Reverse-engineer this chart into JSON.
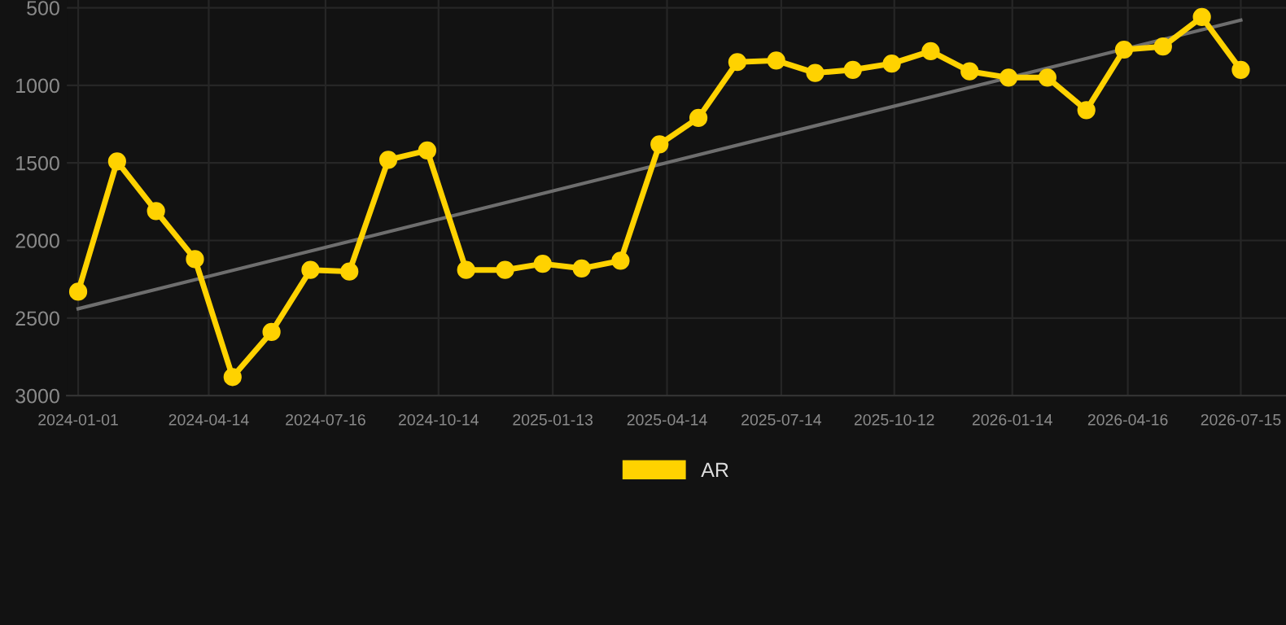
{
  "chart_data": {
    "type": "line",
    "legend": "bottom",
    "grid": true,
    "marker": "circle",
    "line_style": "solid",
    "x": [
      "2024-01-01",
      "2024-02-01",
      "2024-03-03",
      "2024-04-03",
      "2024-05-03",
      "2024-06-03",
      "2024-07-04",
      "2024-08-04",
      "2024-09-04",
      "2024-10-05",
      "2024-11-05",
      "2024-12-06",
      "2025-01-05",
      "2025-02-05",
      "2025-03-08",
      "2025-04-08",
      "2025-05-09",
      "2025-06-09",
      "2025-07-10",
      "2025-08-10",
      "2025-09-09",
      "2025-10-10",
      "2025-11-10",
      "2025-12-11",
      "2026-01-11",
      "2026-02-11",
      "2026-03-14",
      "2026-04-13",
      "2026-05-14",
      "2026-06-14",
      "2026-07-15"
    ],
    "series": [
      {
        "name": "AR",
        "color": "#ffd200",
        "values": [
          2330,
          1490,
          1810,
          2120,
          2880,
          2590,
          2190,
          2200,
          1480,
          1420,
          2190,
          2190,
          2150,
          2180,
          2130,
          1380,
          1210,
          850,
          840,
          920,
          900,
          860,
          780,
          910,
          950,
          950,
          1160,
          770,
          750,
          560,
          900
        ]
      },
      {
        "type": "line",
        "marker": "none",
        "color": "#6e6e6e",
        "x": [
          "2024-01-01",
          "2026-07-15"
        ],
        "values": [
          2440,
          580
        ]
      }
    ],
    "xlim": [
      "2023-12-23",
      "2026-08-20"
    ],
    "xticks": [
      "2024-01-01",
      "2024-04-14",
      "2024-07-16",
      "2024-10-14",
      "2025-01-13",
      "2025-04-14",
      "2025-07-14",
      "2025-10-12",
      "2026-01-14",
      "2026-04-16",
      "2026-07-15"
    ],
    "ylim": [
      3000,
      450
    ],
    "yticks": [
      500,
      1000,
      1500,
      2000,
      2500,
      3000
    ]
  }
}
